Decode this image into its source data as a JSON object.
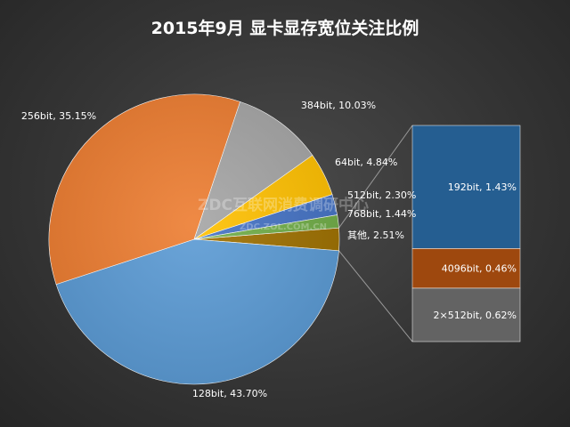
{
  "chart_data": {
    "type": "pie",
    "title": "2015年9月  显卡显存宽位关注比例",
    "slices": [
      {
        "label": "128bit, 43.70%",
        "value": 43.7,
        "color": "#5b9bd5"
      },
      {
        "label": "256bit, 35.15%",
        "value": 35.15,
        "color": "#ed7d31"
      },
      {
        "label": "384bit, 10.03%",
        "value": 10.03,
        "color": "#a5a5a5"
      },
      {
        "label": "64bit, 4.84%",
        "value": 4.84,
        "color": "#ffc000"
      },
      {
        "label": "512bit, 2.30%",
        "value": 2.3,
        "color": "#4472c4"
      },
      {
        "label": "768bit, 1.44%",
        "value": 1.44,
        "color": "#70ad47"
      },
      {
        "label": "其他, 2.51%",
        "value": 2.51,
        "color": "#9e7000"
      }
    ],
    "breakout": [
      {
        "label": "192bit, 1.43%",
        "value": 1.43,
        "color": "#255e91"
      },
      {
        "label": "4096bit, 0.46%",
        "value": 0.46,
        "color": "#9e480e"
      },
      {
        "label": "2×512bit, 0.62%",
        "value": 0.62,
        "color": "#636363"
      }
    ]
  },
  "watermark": {
    "line1": "ZDC互联网消费调研中心",
    "line2": "ZDC.ZOL.COM.CN"
  }
}
